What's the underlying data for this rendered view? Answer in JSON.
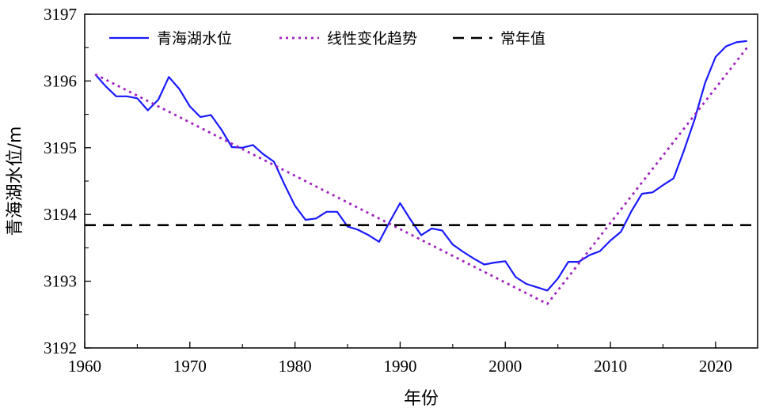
{
  "chart_data": {
    "type": "line",
    "xlabel": "年份",
    "ylabel": "青海湖水位/m",
    "xlim": [
      1960,
      2024
    ],
    "ylim": [
      3192,
      3197
    ],
    "xticks": [
      1960,
      1970,
      1980,
      1990,
      2000,
      2010,
      2020
    ],
    "yticks": [
      3192,
      3193,
      3194,
      3195,
      3196,
      3197
    ],
    "grid": false,
    "legend_position": "top",
    "series": [
      {
        "name": "青海湖水位",
        "style": "solid",
        "color": "#1a1aff",
        "x": [
          1961,
          1962,
          1963,
          1964,
          1965,
          1966,
          1967,
          1968,
          1969,
          1970,
          1971,
          1972,
          1973,
          1974,
          1975,
          1976,
          1977,
          1978,
          1979,
          1980,
          1981,
          1982,
          1983,
          1984,
          1985,
          1986,
          1987,
          1988,
          1989,
          1990,
          1991,
          1992,
          1993,
          1994,
          1995,
          1996,
          1997,
          1998,
          1999,
          2000,
          2001,
          2002,
          2003,
          2004,
          2005,
          2006,
          2007,
          2008,
          2009,
          2010,
          2011,
          2012,
          2013,
          2014,
          2015,
          2016,
          2017,
          2018,
          2019,
          2020,
          2021,
          2022,
          2023
        ],
        "y": [
          3196.1,
          3195.92,
          3195.77,
          3195.77,
          3195.74,
          3195.56,
          3195.72,
          3196.06,
          3195.88,
          3195.62,
          3195.46,
          3195.49,
          3195.27,
          3195.01,
          3195.0,
          3195.04,
          3194.9,
          3194.79,
          3194.45,
          3194.13,
          3193.92,
          3193.94,
          3194.04,
          3194.04,
          3193.82,
          3193.77,
          3193.69,
          3193.59,
          3193.89,
          3194.17,
          3193.92,
          3193.69,
          3193.79,
          3193.76,
          3193.55,
          3193.44,
          3193.34,
          3193.25,
          3193.28,
          3193.3,
          3193.06,
          3192.96,
          3192.91,
          3192.86,
          3193.04,
          3193.29,
          3193.29,
          3193.39,
          3193.45,
          3193.61,
          3193.74,
          3194.05,
          3194.31,
          3194.33,
          3194.44,
          3194.54,
          3194.96,
          3195.42,
          3195.97,
          3196.36,
          3196.52,
          3196.58,
          3196.6
        ]
      },
      {
        "name": "线性变化趋势",
        "style": "dotted",
        "color": "#a020c0",
        "x": [
          1961,
          2004,
          2023
        ],
        "y": [
          3196.1,
          3192.66,
          3196.5
        ]
      },
      {
        "name": "常年值",
        "style": "dashed",
        "color": "#000000",
        "x": [
          1960,
          2024
        ],
        "y": [
          3193.84,
          3193.84
        ]
      }
    ]
  }
}
